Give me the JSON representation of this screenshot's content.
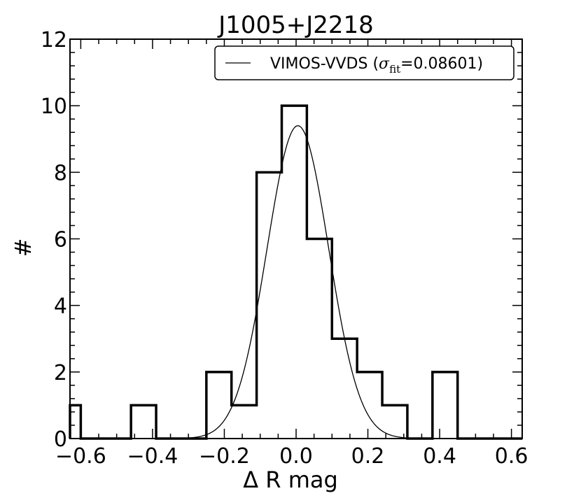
{
  "chart_data": {
    "type": "histogram",
    "title": "J1005+J2218",
    "xlabel": "Δ R mag",
    "ylabel": "#",
    "xlim": [
      -0.63,
      0.63
    ],
    "ylim": [
      0,
      12
    ],
    "xticks": [
      -0.6,
      -0.4,
      -0.2,
      0.0,
      0.2,
      0.4,
      0.6
    ],
    "xtick_labels": [
      "−0.6",
      "−0.4",
      "−0.2",
      "0.0",
      "0.2",
      "0.4",
      "0.6"
    ],
    "yticks": [
      0,
      2,
      4,
      6,
      8,
      10,
      12
    ],
    "ytick_labels": [
      "0",
      "2",
      "4",
      "6",
      "8",
      "10",
      "12"
    ],
    "bins": [
      {
        "x0": -0.63,
        "x1": -0.6,
        "count": 1
      },
      {
        "x0": -0.6,
        "x1": -0.46,
        "count": 0
      },
      {
        "x0": -0.46,
        "x1": -0.39,
        "count": 1
      },
      {
        "x0": -0.39,
        "x1": -0.25,
        "count": 0
      },
      {
        "x0": -0.25,
        "x1": -0.18,
        "count": 2
      },
      {
        "x0": -0.18,
        "x1": -0.11,
        "count": 1
      },
      {
        "x0": -0.11,
        "x1": -0.04,
        "count": 8
      },
      {
        "x0": -0.04,
        "x1": 0.03,
        "count": 10
      },
      {
        "x0": 0.03,
        "x1": 0.1,
        "count": 6
      },
      {
        "x0": 0.1,
        "x1": 0.17,
        "count": 3
      },
      {
        "x0": 0.17,
        "x1": 0.24,
        "count": 2
      },
      {
        "x0": 0.24,
        "x1": 0.31,
        "count": 1
      },
      {
        "x0": 0.31,
        "x1": 0.38,
        "count": 0
      },
      {
        "x0": 0.38,
        "x1": 0.45,
        "count": 2
      },
      {
        "x0": 0.45,
        "x1": 0.63,
        "count": 0
      }
    ],
    "fit": {
      "name": "VIMOS-VVDS",
      "mu": 0.005,
      "sigma": 0.08601,
      "amplitude": 9.4
    },
    "legend": {
      "location": "top-right",
      "prefix": "VIMOS-VVDS (",
      "sigma_symbol": "σ",
      "sigma_sub": "fit",
      "suffix": "=0.08601)"
    },
    "grid": false
  }
}
